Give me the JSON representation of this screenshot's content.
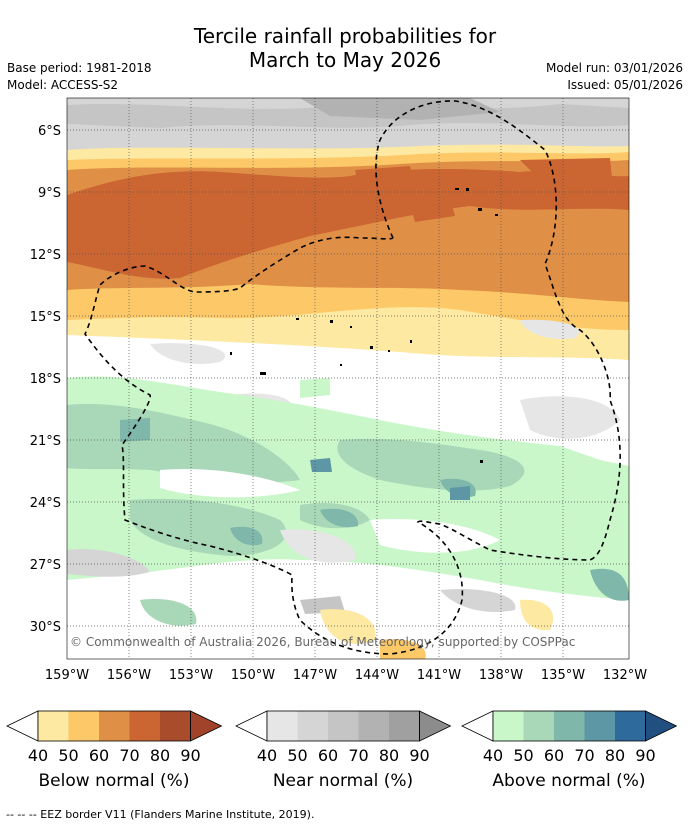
{
  "title": {
    "line1": "Tercile rainfall probabilities for",
    "line2": "March to May 2026"
  },
  "meta": {
    "base_period": "Base period: 1981-2018",
    "model": "Model: ACCESS-S2",
    "model_run": "Model run: 03/01/2026",
    "issued": "Issued: 05/01/2026"
  },
  "map": {
    "lat_labels": [
      "6°S",
      "9°S",
      "12°S",
      "15°S",
      "18°S",
      "21°S",
      "24°S",
      "27°S",
      "30°S"
    ],
    "lon_labels": [
      "159°W",
      "156°W",
      "153°W",
      "150°W",
      "147°W",
      "144°W",
      "141°W",
      "138°W",
      "135°W",
      "132°W"
    ],
    "copyright": "© Commonwealth of Australia 2026, Bureau of Meteorology, supported by COSPPac"
  },
  "legends": [
    {
      "title": "Below normal (%)",
      "ticks": [
        "40",
        "50",
        "60",
        "70",
        "80",
        "90"
      ],
      "colors": [
        "#fde9a2",
        "#fdc867",
        "#e09046",
        "#cb6532",
        "#a84c2b",
        "#a0432a"
      ]
    },
    {
      "title": "Near normal (%)",
      "ticks": [
        "40",
        "50",
        "60",
        "70",
        "80",
        "90"
      ],
      "colors": [
        "#e6e6e6",
        "#d5d5d5",
        "#c5c5c5",
        "#b2b2b2",
        "#a0a0a0",
        "#8c8c8c"
      ]
    },
    {
      "title": "Above normal (%)",
      "ticks": [
        "40",
        "50",
        "60",
        "70",
        "80",
        "90"
      ],
      "colors": [
        "#c9f7c9",
        "#a8d8b8",
        "#7fb8aa",
        "#5d96a4",
        "#2e6a9c",
        "#214f7f"
      ]
    }
  ],
  "footnote": "--  --  -- EEZ border V11 (Flanders Marine Institute, 2019)."
}
